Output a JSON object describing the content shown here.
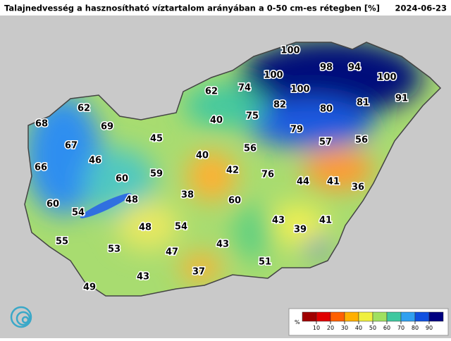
{
  "header": {
    "title": "Talajnedvesség a hasznosítható víztartalom arányában a 0-50 cm-es rétegben [%]",
    "date": "2024-06-23"
  },
  "labels": [
    100,
    98,
    94,
    100,
    100,
    100,
    91,
    62,
    74,
    82,
    80,
    81,
    62,
    75,
    40,
    79,
    68,
    69,
    45,
    57,
    56,
    67,
    56,
    40,
    46,
    66,
    42,
    59,
    76,
    60,
    44,
    41,
    36,
    38,
    60,
    48,
    60,
    54,
    43,
    41,
    48,
    54,
    39,
    55,
    43,
    53,
    47,
    51,
    37,
    43,
    49
  ],
  "colorbar": {
    "unit": "%",
    "range": [
      0,
      100
    ],
    "ticks": [
      10,
      20,
      30,
      40,
      50,
      60,
      70,
      80,
      90
    ],
    "colors": [
      "#a00000",
      "#e00000",
      "#ff6000",
      "#ffb000",
      "#f0f040",
      "#a0e060",
      "#40c8a0",
      "#30a0f0",
      "#1050e0",
      "#000080"
    ]
  }
}
